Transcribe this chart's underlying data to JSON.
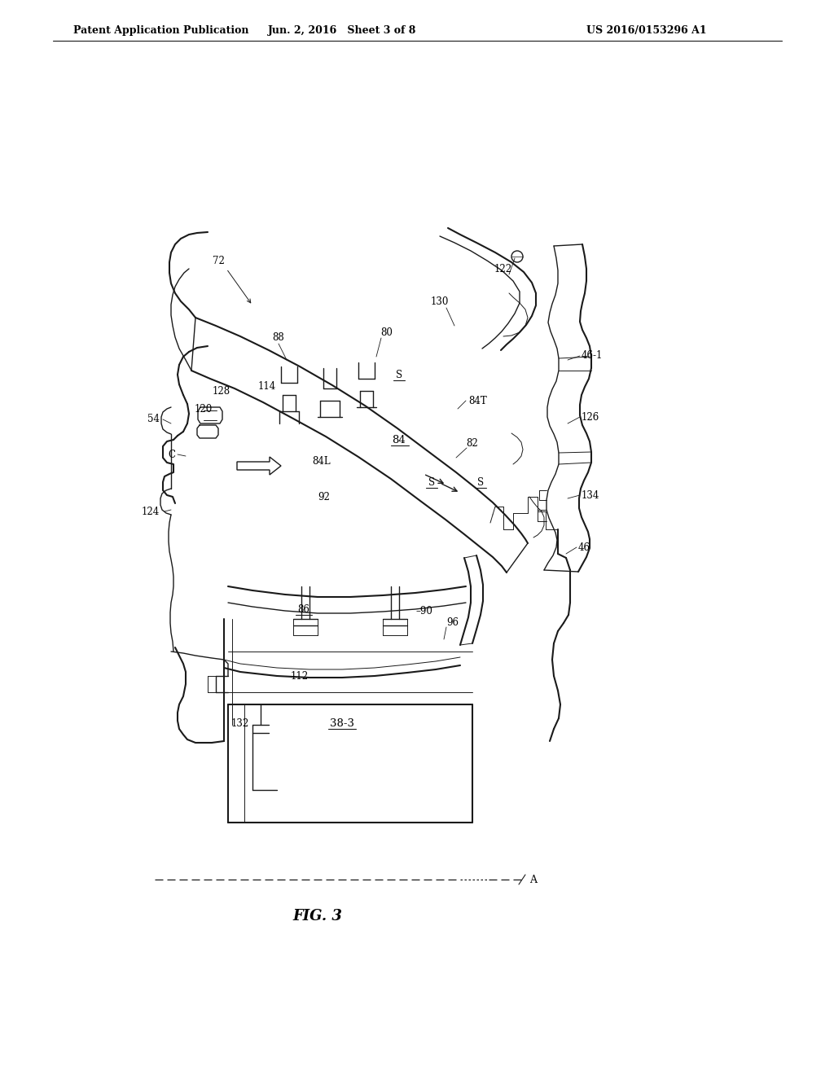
{
  "bg_color": "#ffffff",
  "header_left": "Patent Application Publication",
  "header_mid": "Jun. 2, 2016   Sheet 3 of 8",
  "header_right": "US 2016/0153296 A1",
  "fig_label": "FIG. 3",
  "header_fontsize": 9,
  "fig_label_fontsize": 13,
  "line_color": "#1a1a1a",
  "text_color": "#000000",
  "label_fontsize": 8.5
}
